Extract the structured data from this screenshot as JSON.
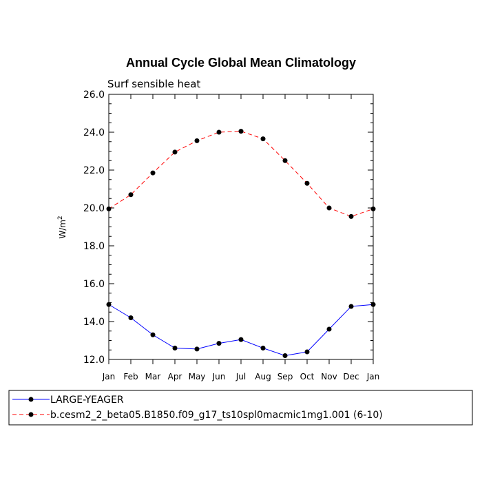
{
  "chart_data": {
    "type": "line",
    "title": "Annual Cycle Global Mean Climatology",
    "subtitle": "Surf sensible heat",
    "ylabel": "W/m",
    "ylabel_sup": "2",
    "xlabel": "",
    "categories": [
      "Jan",
      "Feb",
      "Mar",
      "Apr",
      "May",
      "Jun",
      "Jul",
      "Aug",
      "Sep",
      "Oct",
      "Nov",
      "Dec",
      "Jan"
    ],
    "yticks": [
      "12.0",
      "14.0",
      "16.0",
      "18.0",
      "20.0",
      "22.0",
      "24.0",
      "26.0"
    ],
    "ylim": [
      12.0,
      26.0
    ],
    "grid": false,
    "legend_position": "bottom",
    "series": [
      {
        "name": "LARGE-YEAGER",
        "color": "#0000ff",
        "dash": "solid",
        "values": [
          14.9,
          14.2,
          13.3,
          12.6,
          12.55,
          12.85,
          13.05,
          12.6,
          12.2,
          12.4,
          13.6,
          14.8,
          14.9
        ]
      },
      {
        "name": "b.cesm2_2_beta05.B1850.f09_g17_ts10spl0macmic1mg1.001 (6-10)",
        "color": "#ff0000",
        "dash": "dashed",
        "values": [
          19.95,
          20.7,
          21.85,
          22.95,
          23.55,
          24.0,
          24.05,
          23.65,
          22.5,
          21.3,
          20.0,
          19.55,
          19.95
        ]
      }
    ]
  }
}
